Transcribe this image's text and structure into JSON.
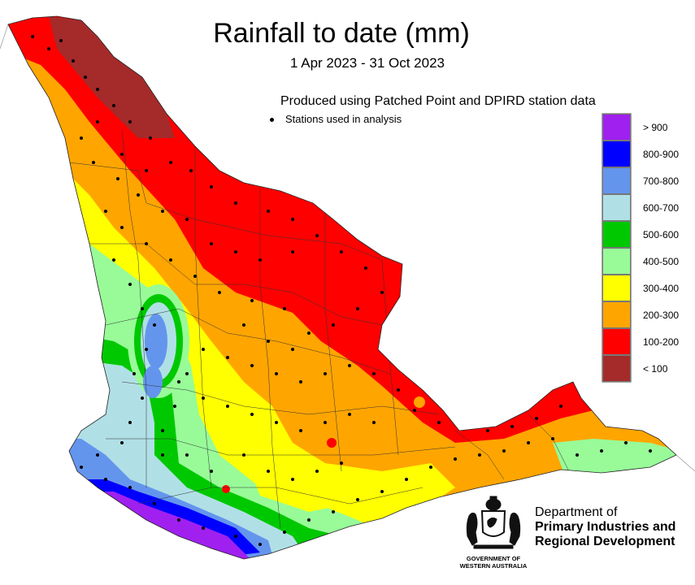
{
  "title": "Rainfall to date (mm)",
  "date_range": "1 Apr 2023 - 31 Oct 2023",
  "produced_note": "Produced using Patched Point and DPIRD station data",
  "stations_note": "Stations used in analysis",
  "legend": [
    {
      "label": "> 900",
      "color": "#a020f0"
    },
    {
      "label": "800-900",
      "color": "#0000ff"
    },
    {
      "label": "700-800",
      "color": "#6495ed"
    },
    {
      "label": "600-700",
      "color": "#b0e0e6"
    },
    {
      "label": "500-600",
      "color": "#00c800"
    },
    {
      "label": "400-500",
      "color": "#98fb98"
    },
    {
      "label": "300-400",
      "color": "#ffff00"
    },
    {
      "label": "200-300",
      "color": "#ffa500"
    },
    {
      "label": "100-200",
      "color": "#ff0000"
    },
    {
      "label": "< 100",
      "color": "#a52a2a"
    }
  ],
  "department": {
    "line1": "Department of",
    "line2": "Primary Industries and",
    "line3": "Regional Development"
  },
  "government": {
    "line1": "GOVERNMENT OF",
    "line2": "WESTERN AUSTRALIA"
  }
}
